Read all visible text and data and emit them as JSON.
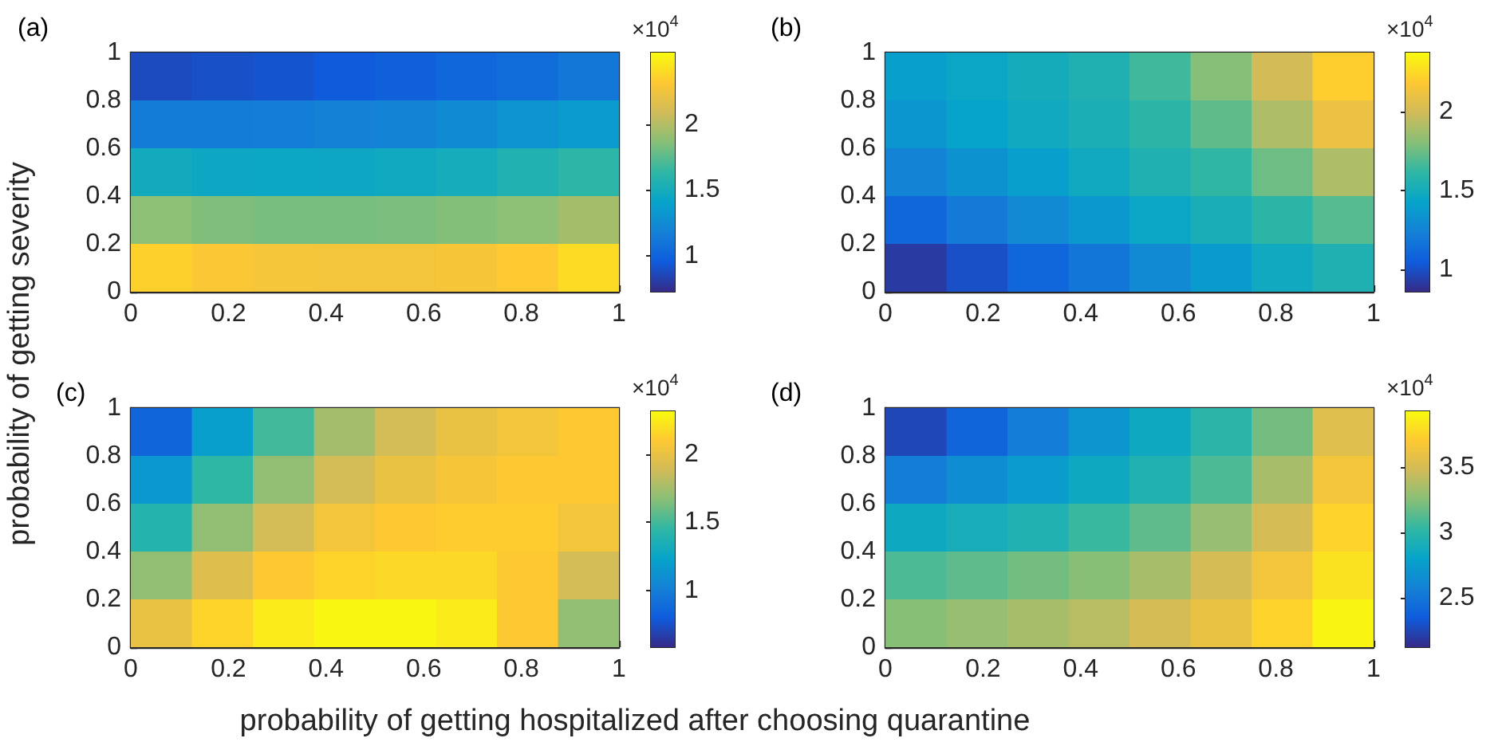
{
  "chart_data": [
    {
      "type": "heatmap",
      "title": "(a)",
      "ylabel": "probability of getting severity",
      "clabel": "×10$^{4}$",
      "xlim": [
        0,
        1
      ],
      "ylim": [
        0,
        1
      ],
      "xticks": [
        0,
        0.2,
        0.4,
        0.6,
        0.8,
        1
      ],
      "yticks": [
        0,
        0.2,
        0.4,
        0.6,
        0.8,
        1
      ],
      "clim": [
        0.73,
        2.54
      ],
      "cticks": [
        1,
        1.5,
        2
      ],
      "cells": [
        [
          0.88,
          0.9,
          0.92,
          0.95,
          0.98,
          1.02,
          1.06,
          1.12
        ],
        [
          1.15,
          1.15,
          1.16,
          1.18,
          1.2,
          1.24,
          1.3,
          1.36
        ],
        [
          1.48,
          1.45,
          1.44,
          1.45,
          1.47,
          1.5,
          1.56,
          1.62
        ],
        [
          1.88,
          1.84,
          1.82,
          1.82,
          1.83,
          1.85,
          1.88,
          1.95
        ],
        [
          2.35,
          2.3,
          2.27,
          2.26,
          2.26,
          2.28,
          2.32,
          2.4
        ]
      ]
    },
    {
      "type": "heatmap",
      "title": "(b)",
      "clabel": "×10$^{4}$",
      "xlim": [
        0,
        1
      ],
      "ylim": [
        0,
        1
      ],
      "xticks": [
        0,
        0.2,
        0.4,
        0.6,
        0.8,
        1
      ],
      "yticks": [
        0,
        0.2,
        0.4,
        0.6,
        0.8,
        1
      ],
      "clim": [
        0.86,
        2.37
      ],
      "cticks": [
        1,
        1.5,
        2
      ],
      "cells": [
        [
          1.4,
          1.45,
          1.5,
          1.55,
          1.65,
          1.8,
          2.0,
          2.2
        ],
        [
          1.35,
          1.42,
          1.48,
          1.53,
          1.6,
          1.72,
          1.9,
          2.1
        ],
        [
          1.25,
          1.33,
          1.4,
          1.48,
          1.55,
          1.62,
          1.75,
          1.9
        ],
        [
          1.1,
          1.2,
          1.28,
          1.36,
          1.45,
          1.52,
          1.6,
          1.7
        ],
        [
          0.92,
          1.0,
          1.1,
          1.18,
          1.28,
          1.38,
          1.48,
          1.55
        ]
      ]
    },
    {
      "type": "heatmap",
      "title": "(c)",
      "xlabel": "probability of getting hospitalized after choosing quarantine",
      "clabel": "×10$^{4}$",
      "xlim": [
        0,
        1
      ],
      "ylim": [
        0,
        1
      ],
      "xticks": [
        0,
        0.2,
        0.4,
        0.6,
        0.8,
        1
      ],
      "yticks": [
        0,
        0.2,
        0.4,
        0.6,
        0.8,
        1
      ],
      "clim": [
        0.58,
        2.32
      ],
      "cticks": [
        1,
        1.5,
        2
      ],
      "cells": [
        [
          0.85,
          1.2,
          1.5,
          1.75,
          1.9,
          2.0,
          2.05,
          2.1
        ],
        [
          1.15,
          1.45,
          1.7,
          1.9,
          2.0,
          2.07,
          2.1,
          2.1
        ],
        [
          1.4,
          1.7,
          1.9,
          2.05,
          2.1,
          2.12,
          2.12,
          2.05
        ],
        [
          1.7,
          1.95,
          2.1,
          2.15,
          2.17,
          2.17,
          2.1,
          1.9
        ],
        [
          2.0,
          2.15,
          2.25,
          2.3,
          2.3,
          2.25,
          2.1,
          1.7
        ]
      ]
    },
    {
      "type": "heatmap",
      "title": "(d)",
      "clabel": "×10$^{4}$",
      "xlim": [
        0,
        1
      ],
      "ylim": [
        0,
        1
      ],
      "xticks": [
        0,
        0.2,
        0.4,
        0.6,
        0.8,
        1
      ],
      "yticks": [
        0,
        0.2,
        0.4,
        0.6,
        0.8,
        1
      ],
      "clim": [
        2.12,
        3.93
      ],
      "cticks": [
        2.5,
        3,
        3.5
      ],
      "cells": [
        [
          2.25,
          2.4,
          2.55,
          2.7,
          2.85,
          3.0,
          3.2,
          3.55
        ],
        [
          2.55,
          2.65,
          2.75,
          2.85,
          2.95,
          3.1,
          3.35,
          3.65
        ],
        [
          2.85,
          2.9,
          2.95,
          3.05,
          3.15,
          3.3,
          3.5,
          3.75
        ],
        [
          3.1,
          3.15,
          3.2,
          3.25,
          3.35,
          3.5,
          3.65,
          3.82
        ],
        [
          3.25,
          3.3,
          3.35,
          3.4,
          3.5,
          3.6,
          3.75,
          3.9
        ]
      ]
    }
  ]
}
